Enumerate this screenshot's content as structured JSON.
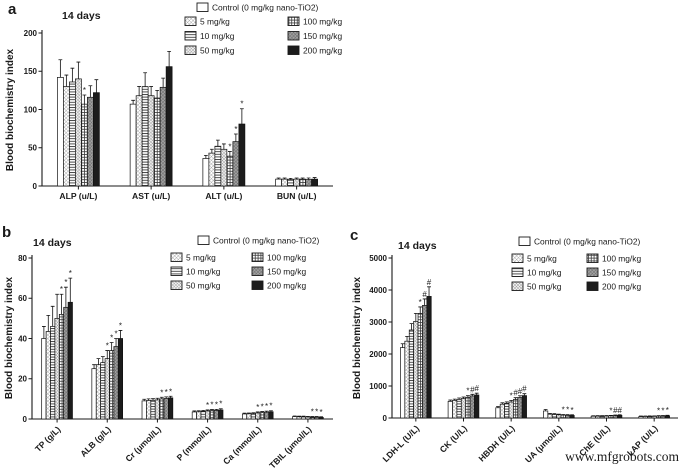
{
  "figure": {
    "watermark": "www.mfgrobots.com",
    "background": "#ffffff",
    "text_color": "#1a1a1a"
  },
  "legend": {
    "control_label": "Control (0 mg/kg nano-TiO2)",
    "dose_labels": [
      "5 mg/kg",
      "10 mg/kg",
      "50 mg/kg",
      "100 mg/kg",
      "150 mg/kg",
      "200 mg/kg"
    ]
  },
  "chart_data": [
    {
      "panel_label": "a",
      "type": "bar",
      "title": "14 days",
      "ylabel": "Blood biochemistry index",
      "xlabel": "",
      "ylim": [
        0,
        200
      ],
      "yticks": [
        0,
        50,
        100,
        150,
        200
      ],
      "grid": false,
      "legend_position": "top-right",
      "categories": [
        "ALP (u/L)",
        "AST (u/L)",
        "ALT (u/L)",
        "BUN (u/L)"
      ],
      "series": [
        {
          "name": "Control (0 mg/kg nano-TiO2)",
          "pattern": "open-white",
          "values": [
            142,
            107,
            36,
            9
          ],
          "errors": [
            23,
            5,
            4,
            1.5
          ],
          "marks": [
            "",
            "",
            "",
            ""
          ]
        },
        {
          "name": "5 mg/kg",
          "pattern": "fine-crosshatch",
          "values": [
            130,
            118,
            43,
            9
          ],
          "errors": [
            15,
            12,
            5,
            1.5
          ],
          "marks": [
            "",
            "",
            "",
            ""
          ]
        },
        {
          "name": "10 mg/kg",
          "pattern": "horizontal-lines",
          "values": [
            136,
            130,
            52,
            8.5
          ],
          "errors": [
            18,
            18,
            8,
            1.5
          ],
          "marks": [
            "",
            "",
            "",
            ""
          ]
        },
        {
          "name": "50 mg/kg",
          "pattern": "dense-crosshatch",
          "values": [
            140,
            118,
            48,
            9
          ],
          "errors": [
            22,
            12,
            7,
            1.5
          ],
          "marks": [
            "",
            "",
            "",
            ""
          ]
        },
        {
          "name": "100 mg/kg",
          "pattern": "grid",
          "values": [
            107,
            115,
            39,
            9
          ],
          "errors": [
            12,
            10,
            6,
            1.5
          ],
          "marks": [
            "*",
            "",
            "*",
            ""
          ]
        },
        {
          "name": "150 mg/kg",
          "pattern": "gray-crosshatch",
          "values": [
            116,
            129,
            58,
            8.5
          ],
          "errors": [
            15,
            12,
            10,
            2
          ],
          "marks": [
            "",
            "",
            "*",
            ""
          ]
        },
        {
          "name": "200 mg/kg",
          "pattern": "solid-black",
          "values": [
            122,
            156,
            81,
            9
          ],
          "errors": [
            17,
            20,
            20,
            2
          ],
          "marks": [
            "",
            "",
            "*",
            ""
          ]
        }
      ]
    },
    {
      "panel_label": "b",
      "type": "bar",
      "title": "14 days",
      "ylabel": "Blood biochemistry index",
      "xlabel": "",
      "ylim": [
        0,
        80
      ],
      "yticks": [
        0,
        20,
        40,
        60,
        80
      ],
      "grid": false,
      "legend_position": "top-right",
      "categories": [
        "TP (g/L)",
        "ALB (g/L)",
        "Cr (μmol/L)",
        "P (mmol/L)",
        "Ca (mmol/L)",
        "TBIL (μmol/L)"
      ],
      "series": [
        {
          "name": "Control (0 mg/kg nano-TiO2)",
          "pattern": "open-white",
          "values": [
            40,
            25,
            9,
            3.5,
            2.5,
            1.2
          ],
          "errors": [
            6,
            2,
            0.8,
            0.5,
            0.4,
            0.3
          ],
          "marks": [
            "",
            "",
            "",
            "",
            "",
            ""
          ]
        },
        {
          "name": "5 mg/kg",
          "pattern": "fine-crosshatch",
          "values": [
            43.5,
            27,
            9.2,
            3.6,
            2.6,
            1.1
          ],
          "errors": [
            8,
            3,
            0.8,
            0.5,
            0.4,
            0.3
          ],
          "marks": [
            "",
            "",
            "",
            "",
            "",
            ""
          ]
        },
        {
          "name": "10 mg/kg",
          "pattern": "horizontal-lines",
          "values": [
            46,
            28,
            9.3,
            3.8,
            2.7,
            1.1
          ],
          "errors": [
            10,
            3,
            0.8,
            0.5,
            0.4,
            0.3
          ],
          "marks": [
            "",
            "",
            "",
            "",
            "",
            ""
          ]
        },
        {
          "name": "50 mg/kg",
          "pattern": "dense-crosshatch",
          "values": [
            50,
            30,
            9.5,
            4,
            3,
            1
          ],
          "errors": [
            12,
            4,
            0.8,
            0.5,
            0.5,
            0.3
          ],
          "marks": [
            "",
            "*",
            "",
            "*",
            "*",
            ""
          ]
        },
        {
          "name": "100 mg/kg",
          "pattern": "grid",
          "values": [
            52,
            34,
            10,
            4.2,
            3.2,
            0.9
          ],
          "errors": [
            10,
            4,
            0.8,
            0.5,
            0.5,
            0.3
          ],
          "marks": [
            "*",
            "*",
            "*",
            "*",
            "*",
            "*"
          ]
        },
        {
          "name": "150 mg/kg",
          "pattern": "gray-crosshatch",
          "values": [
            55.5,
            36,
            10.2,
            4.3,
            3.4,
            0.9
          ],
          "errors": [
            10,
            4,
            0.8,
            0.5,
            0.5,
            0.3
          ],
          "marks": [
            "*",
            "*",
            "*",
            "*",
            "*",
            "*"
          ]
        },
        {
          "name": "200 mg/kg",
          "pattern": "solid-black",
          "values": [
            58,
            40,
            10.5,
            4.5,
            3.6,
            0.8
          ],
          "errors": [
            12,
            4,
            0.8,
            0.6,
            0.5,
            0.3
          ],
          "marks": [
            "*",
            "*",
            "*",
            "*",
            "*",
            "*"
          ]
        }
      ]
    },
    {
      "panel_label": "c",
      "type": "bar",
      "title": "14 days",
      "ylabel": "Blood biochemistry index",
      "xlabel": "",
      "ylim": [
        0,
        5000
      ],
      "yticks": [
        0,
        1000,
        2000,
        3000,
        4000,
        5000
      ],
      "grid": false,
      "legend_position": "top-right",
      "categories": [
        "LDH-L (U/L)",
        "CK (U/L)",
        "HBDH (U/L)",
        "UA (μmol/L)",
        "ChE (U/L)",
        "LAP (U/L)"
      ],
      "series": [
        {
          "name": "Control (0 mg/kg nano-TiO2)",
          "pattern": "open-white",
          "values": [
            2200,
            520,
            320,
            220,
            55,
            45
          ],
          "errors": [
            120,
            40,
            40,
            45,
            15,
            15
          ],
          "marks": [
            "",
            "",
            "",
            "",
            "",
            ""
          ]
        },
        {
          "name": "5 mg/kg",
          "pattern": "fine-crosshatch",
          "values": [
            2400,
            550,
            430,
            120,
            58,
            48
          ],
          "errors": [
            150,
            40,
            45,
            25,
            15,
            15
          ],
          "marks": [
            "",
            "",
            "",
            "",
            "",
            ""
          ]
        },
        {
          "name": "10 mg/kg",
          "pattern": "horizontal-lines",
          "values": [
            2750,
            580,
            460,
            110,
            60,
            50
          ],
          "errors": [
            200,
            45,
            45,
            25,
            15,
            15
          ],
          "marks": [
            "",
            "",
            "",
            "",
            "",
            ""
          ]
        },
        {
          "name": "50 mg/kg",
          "pattern": "dense-crosshatch",
          "values": [
            3020,
            610,
            500,
            100,
            62,
            52
          ],
          "errors": [
            250,
            45,
            50,
            20,
            15,
            15
          ],
          "marks": [
            "",
            "",
            "*",
            "",
            "",
            ""
          ]
        },
        {
          "name": "100 mg/kg",
          "pattern": "grid",
          "values": [
            3270,
            650,
            580,
            90,
            68,
            58
          ],
          "errors": [
            200,
            50,
            55,
            20,
            15,
            15
          ],
          "marks": [
            "*",
            "*",
            "#",
            "*",
            "*",
            "*"
          ]
        },
        {
          "name": "150 mg/kg",
          "pattern": "gray-crosshatch",
          "values": [
            3520,
            690,
            640,
            85,
            75,
            62
          ],
          "errors": [
            200,
            50,
            55,
            20,
            18,
            15
          ],
          "marks": [
            "#",
            "#",
            "#",
            "*",
            "#",
            "*"
          ]
        },
        {
          "name": "200 mg/kg",
          "pattern": "solid-black",
          "values": [
            3800,
            720,
            700,
            80,
            82,
            68
          ],
          "errors": [
            300,
            55,
            60,
            20,
            18,
            18
          ],
          "marks": [
            "#",
            "#",
            "#",
            "*",
            "#",
            "*"
          ]
        }
      ]
    }
  ]
}
